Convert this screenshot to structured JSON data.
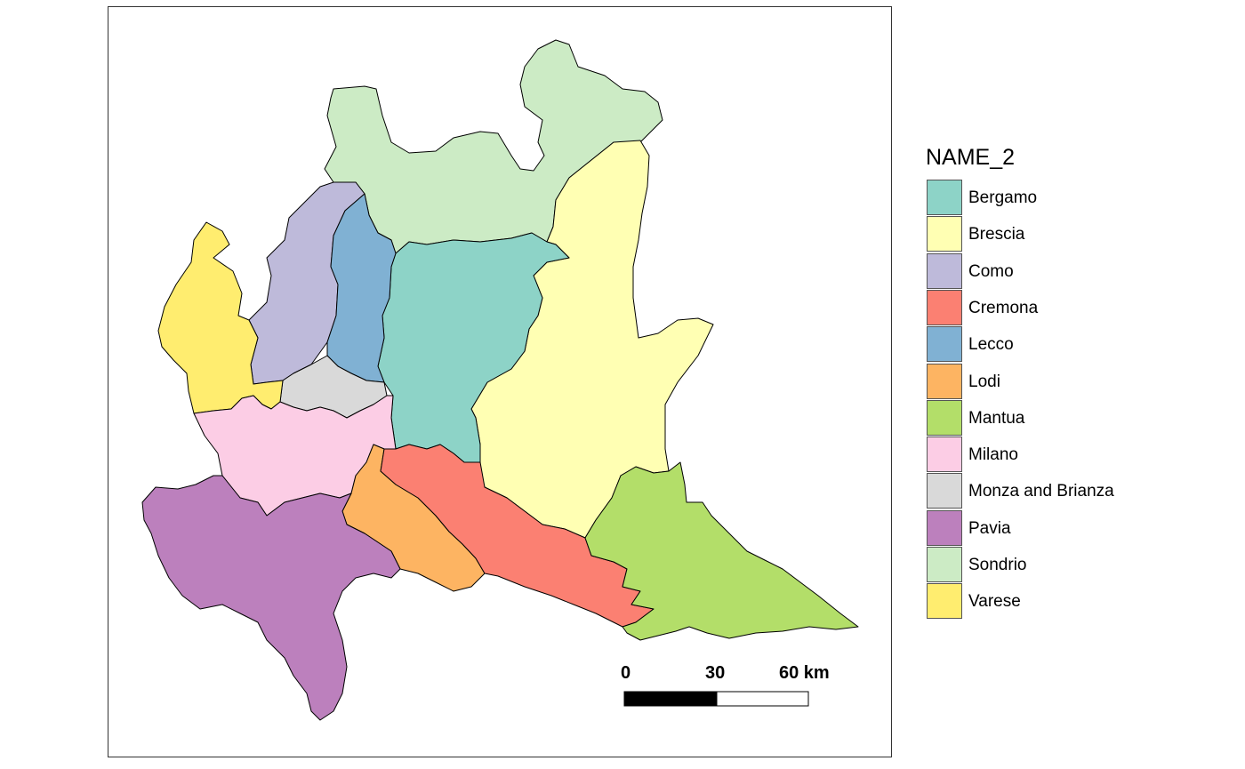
{
  "legend": {
    "title": "NAME_2",
    "items": [
      {
        "label": "Bergamo",
        "color": "#8DD3C7"
      },
      {
        "label": "Brescia",
        "color": "#FFFFB3"
      },
      {
        "label": "Como",
        "color": "#BEBADA"
      },
      {
        "label": "Cremona",
        "color": "#FB8072"
      },
      {
        "label": "Lecco",
        "color": "#80B1D3"
      },
      {
        "label": "Lodi",
        "color": "#FDB462"
      },
      {
        "label": "Mantua",
        "color": "#B3DE69"
      },
      {
        "label": "Milano",
        "color": "#FCCDE5"
      },
      {
        "label": "Monza and Brianza",
        "color": "#D9D9D9"
      },
      {
        "label": "Pavia",
        "color": "#BC80BD"
      },
      {
        "label": "Sondrio",
        "color": "#CCEBC5"
      },
      {
        "label": "Varese",
        "color": "#FFED6F"
      }
    ]
  },
  "scale_bar": {
    "labels": [
      "0",
      "30",
      "60 km"
    ]
  }
}
